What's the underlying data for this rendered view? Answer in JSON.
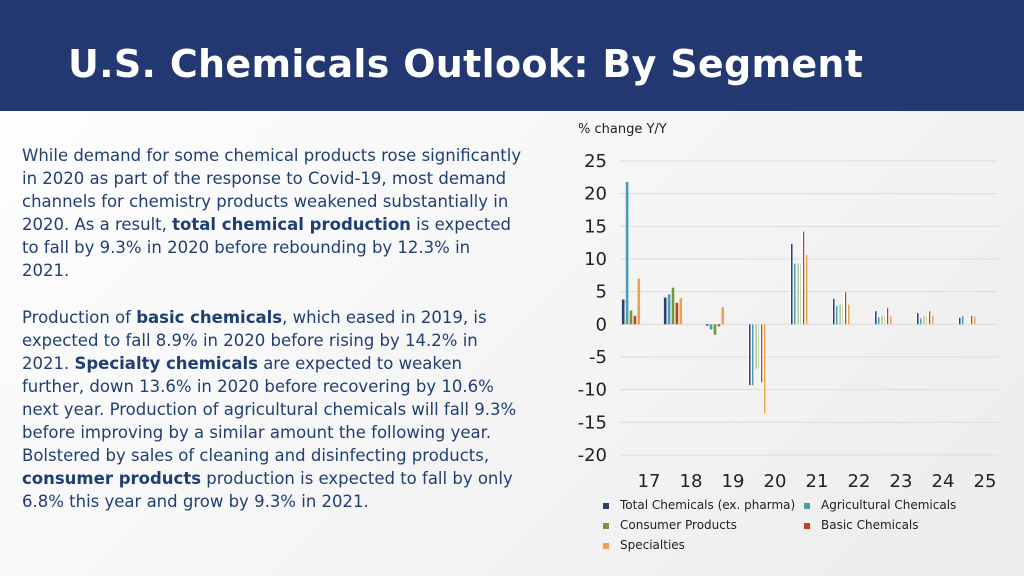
{
  "slide": {
    "title": "U.S. Chemicals Outlook: By Segment",
    "paragraphs": [
      [
        {
          "text": "While demand for some chemical products rose significantly in 2020 as part of the response to Covid-19, most demand channels for chemistry products weakened substantially in 2020. As a result, ",
          "bold": false
        },
        {
          "text": "total chemical production",
          "bold": true
        },
        {
          "text": " is expected to fall by 9.3% in 2020 before rebounding by 12.3% in 2021.",
          "bold": false
        }
      ],
      [
        {
          "text": "Production of ",
          "bold": false
        },
        {
          "text": "basic chemicals",
          "bold": true
        },
        {
          "text": ", which eased in 2019, is expected to fall 8.9% in 2020 before rising by 14.2% in 2021. ",
          "bold": false
        },
        {
          "text": "Specialty chemicals",
          "bold": true
        },
        {
          "text": " are expected to weaken further, down 13.6% in 2020 before recovering by 10.6% next year. Production of agricultural chemicals will fall 9.3% before improving by a similar amount the following year. Bolstered by sales of cleaning and disinfecting products, ",
          "bold": false
        },
        {
          "text": "consumer products",
          "bold": true
        },
        {
          "text": " production is expected to fall by only 6.8% this year and grow by 9.3% in 2021.",
          "bold": false
        }
      ]
    ]
  },
  "chart_data": {
    "type": "bar",
    "ylabel": "% change Y/Y",
    "ylim": [
      -20,
      25
    ],
    "yticks": [
      25,
      20,
      15,
      10,
      5,
      0,
      -5,
      -10,
      -15,
      -20
    ],
    "categories": [
      "17",
      "18",
      "19",
      "20",
      "21",
      "22",
      "23",
      "24",
      "25"
    ],
    "grid": true,
    "legend_position": "bottom",
    "series": [
      {
        "name": "Total Chemicals (ex. pharma)",
        "color": "#2c3f73",
        "pattern": "solid",
        "values": [
          3.8,
          4.1,
          -0.2,
          -9.3,
          12.3,
          3.9,
          2.0,
          1.7,
          1.0
        ]
      },
      {
        "name": "Agricultural Chemicals",
        "color": "#4a9cb0",
        "pattern": "solid",
        "values": [
          21.8,
          4.6,
          -0.8,
          -9.3,
          9.3,
          2.8,
          1.1,
          0.9,
          1.3
        ]
      },
      {
        "name": "Consumer Products",
        "color": "#6f9a3c",
        "pattern": "solid",
        "values": [
          2.1,
          5.6,
          -1.6,
          -6.8,
          9.3,
          3.0,
          1.3,
          1.3,
          0.0
        ]
      },
      {
        "name": "Basic Chemicals",
        "color": "#c0401f",
        "pattern": "solid",
        "values": [
          1.3,
          3.3,
          -0.3,
          -8.9,
          14.2,
          4.9,
          2.5,
          2.0,
          1.3
        ]
      },
      {
        "name": "Specialties",
        "color": "#e8a347",
        "pattern": "solid",
        "values": [
          7.0,
          4.0,
          2.6,
          -13.6,
          10.6,
          3.0,
          1.2,
          1.3,
          1.2
        ]
      }
    ]
  }
}
